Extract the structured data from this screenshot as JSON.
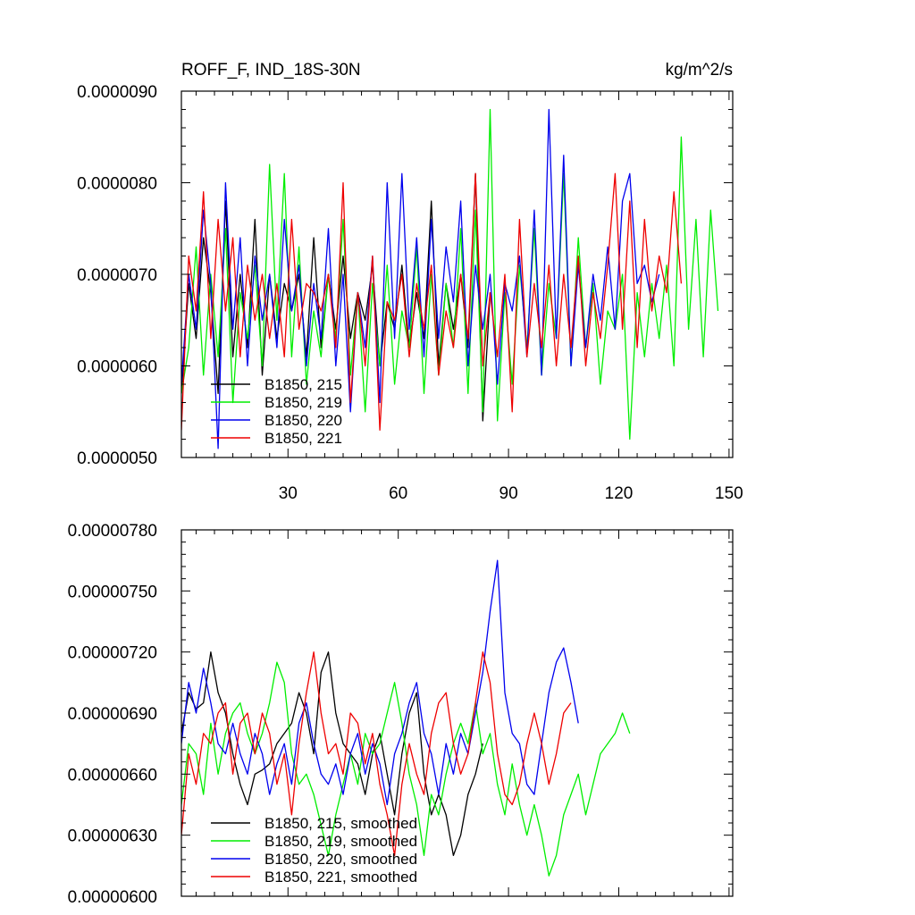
{
  "chart_data": [
    {
      "type": "line",
      "title_left": "ROFF_F, IND_18S-30N",
      "title_right": "kg/m^2/s",
      "xlabel": "",
      "ylabel": "",
      "xlim": [
        1,
        151
      ],
      "ylim": [
        5e-06,
        9e-06
      ],
      "x_ticks": [
        30,
        60,
        90,
        120,
        150
      ],
      "x_tick_labels": [
        "30",
        "60",
        "90",
        "120",
        "150"
      ],
      "y_ticks": [
        5e-06,
        6e-06,
        7e-06,
        8e-06,
        9e-06
      ],
      "y_tick_labels": [
        "0.0000050",
        "0.0000060",
        "0.0000070",
        "0.0000080",
        "0.0000090"
      ],
      "legend_position": "bottom-left",
      "series": [
        {
          "name": "B1850, 215",
          "color": "#000000",
          "x_start": 1,
          "x_step": 2,
          "values": [
            5.7e-06,
            6.9e-06,
            6.3e-06,
            7.4e-06,
            6.8e-06,
            5.7e-06,
            7.8e-06,
            6.1e-06,
            7e-06,
            6.2e-06,
            7.6e-06,
            5.9e-06,
            7e-06,
            6.3e-06,
            6.9e-06,
            6.6e-06,
            7e-06,
            6.1e-06,
            7.4e-06,
            6.2e-06,
            7e-06,
            6.4e-06,
            7.2e-06,
            6.3e-06,
            6.8e-06,
            6.5e-06,
            7.1e-06,
            6e-06,
            6.7e-06,
            6.4e-06,
            7.1e-06,
            6.2e-06,
            6.8e-06,
            6.3e-06,
            7.8e-06,
            6e-06,
            6.9e-06,
            6.4e-06,
            7e-06,
            6.2e-06,
            8.1e-06,
            5.4e-06,
            6.8e-06
          ]
        },
        {
          "name": "B1850, 219",
          "color": "#00ee00",
          "x_start": 1,
          "x_step": 2,
          "values": [
            5.7e-06,
            6.2e-06,
            7.3e-06,
            5.9e-06,
            7e-06,
            6.1e-06,
            7.5e-06,
            5.6e-06,
            6.8e-06,
            6.3e-06,
            7.1e-06,
            6e-06,
            8.2e-06,
            6.5e-06,
            8.1e-06,
            6.1e-06,
            7.3e-06,
            5.8e-06,
            6.6e-06,
            6.1e-06,
            7e-06,
            6.3e-06,
            7.6e-06,
            5.9e-06,
            6.8e-06,
            5.5e-06,
            6.9e-06,
            6e-06,
            7.1e-06,
            5.8e-06,
            6.6e-06,
            6.2e-06,
            7.3e-06,
            5.7e-06,
            7e-06,
            5.9e-06,
            6.9e-06,
            6.2e-06,
            7.5e-06,
            5.7e-06,
            7.7e-06,
            5.5e-06,
            8.8e-06,
            5.4e-06,
            6.8e-06,
            5.8e-06,
            7.1e-06,
            6.2e-06,
            7.5e-06,
            5.9e-06,
            6.9e-06,
            6.3e-06,
            8.1e-06,
            6e-06,
            7.4e-06,
            6.2e-06,
            6.9e-06,
            5.8e-06,
            6.6e-06,
            6.4e-06,
            7e-06,
            5.2e-06,
            6.8e-06,
            6.1e-06,
            6.9e-06,
            6.3e-06,
            7.1e-06,
            6e-06,
            8.5e-06,
            6.4e-06,
            7.6e-06,
            6.1e-06,
            7.7e-06,
            6.6e-06
          ]
        },
        {
          "name": "B1850, 220",
          "color": "#0000ee",
          "x_start": 1,
          "x_step": 2,
          "values": [
            5.8e-06,
            7e-06,
            6.4e-06,
            7.7e-06,
            6.9e-06,
            5.1e-06,
            8e-06,
            6.4e-06,
            7.4e-06,
            6e-06,
            7.2e-06,
            6.5e-06,
            7e-06,
            6.2e-06,
            7.6e-06,
            6.6e-06,
            7.1e-06,
            6e-06,
            6.9e-06,
            6.3e-06,
            7.5e-06,
            6e-06,
            7e-06,
            5.5e-06,
            6.8e-06,
            6.2e-06,
            7.2e-06,
            5.6e-06,
            8e-06,
            6.3e-06,
            8.1e-06,
            6.4e-06,
            7.4e-06,
            6.1e-06,
            7.6e-06,
            6.3e-06,
            7.3e-06,
            6.7e-06,
            7.8e-06,
            6e-06,
            7.1e-06,
            6.4e-06,
            7e-06,
            5.8e-06,
            6.9e-06,
            6.6e-06,
            7.2e-06,
            6.1e-06,
            7.7e-06,
            5.9e-06,
            8.8e-06,
            6.3e-06,
            8.3e-06,
            6e-06,
            7.1e-06,
            6.2e-06,
            7e-06,
            6.5e-06,
            7.3e-06,
            6.4e-06,
            7.8e-06,
            8.1e-06,
            6.9e-06,
            7.1e-06,
            6.7e-06,
            7e-06
          ]
        },
        {
          "name": "B1850, 221",
          "color": "#ee0000",
          "x_start": 1,
          "x_step": 2,
          "values": [
            5.3e-06,
            7.2e-06,
            6.6e-06,
            7.9e-06,
            6.3e-06,
            7.6e-06,
            6.6e-06,
            7.4e-06,
            6.1e-06,
            7.1e-06,
            6.5e-06,
            7e-06,
            6.3e-06,
            6.9e-06,
            6.1e-06,
            7.6e-06,
            6.4e-06,
            6.9e-06,
            6.8e-06,
            6.6e-06,
            7e-06,
            6.2e-06,
            8e-06,
            5.6e-06,
            6.8e-06,
            6e-06,
            7.2e-06,
            5.3e-06,
            6.7e-06,
            6.5e-06,
            7e-06,
            6.1e-06,
            6.9e-06,
            6.4e-06,
            7.1e-06,
            5.9e-06,
            6.6e-06,
            6.2e-06,
            7e-06,
            6.3e-06,
            8.1e-06,
            6e-06,
            6.8e-06,
            6.1e-06,
            7e-06,
            5.5e-06,
            7.6e-06,
            6.1e-06,
            6.9e-06,
            6.2e-06,
            7.1e-06,
            6e-06,
            7e-06,
            6.2e-06,
            7.2e-06,
            6e-06,
            6.8e-06,
            6.3e-06,
            7.1e-06,
            8.1e-06,
            6.4e-06,
            7.8e-06,
            6.2e-06,
            7.6e-06,
            6.6e-06,
            7.2e-06,
            6.8e-06,
            7.9e-06,
            6.9e-06
          ]
        }
      ]
    },
    {
      "type": "line",
      "title_left": "",
      "title_right": "",
      "xlabel": "",
      "ylabel": "",
      "xlim": [
        1,
        151
      ],
      "ylim": [
        6e-06,
        7.8e-06
      ],
      "x_ticks": [
        30,
        60,
        90,
        120,
        150
      ],
      "x_tick_labels": [],
      "y_ticks": [
        6e-06,
        6.3e-06,
        6.6e-06,
        6.9e-06,
        7.2e-06,
        7.5e-06,
        7.8e-06
      ],
      "y_tick_labels": [
        "0.00000600",
        "0.00000630",
        "0.00000660",
        "0.00000690",
        "0.00000720",
        "0.00000750",
        "0.00000780"
      ],
      "legend_position": "bottom-left",
      "series": [
        {
          "name": "B1850, 215, smoothed",
          "color": "#000000",
          "x_start": 1,
          "x_step": 2,
          "values": [
            6.8e-06,
            7e-06,
            6.92e-06,
            6.95e-06,
            7.2e-06,
            7e-06,
            6.9e-06,
            6.7e-06,
            6.55e-06,
            6.45e-06,
            6.6e-06,
            6.62e-06,
            6.65e-06,
            6.75e-06,
            6.8e-06,
            6.85e-06,
            7e-06,
            6.9e-06,
            6.7e-06,
            7.1e-06,
            7.2e-06,
            6.9e-06,
            6.75e-06,
            6.7e-06,
            6.65e-06,
            6.5e-06,
            6.7e-06,
            6.8e-06,
            6.6e-06,
            6.4e-06,
            6.7e-06,
            6.9e-06,
            7e-06,
            6.6e-06,
            6.4e-06,
            6.5e-06,
            6.4e-06,
            6.2e-06,
            6.3e-06,
            6.5e-06,
            6.6e-06,
            6.75e-06
          ]
        },
        {
          "name": "B1850, 219, smoothed",
          "color": "#00ee00",
          "x_start": 1,
          "x_step": 2,
          "values": [
            6.45e-06,
            6.75e-06,
            6.7e-06,
            6.5e-06,
            6.85e-06,
            6.6e-06,
            6.8e-06,
            6.9e-06,
            6.95e-06,
            6.8e-06,
            6.7e-06,
            6.8e-06,
            6.95e-06,
            7.15e-06,
            7.05e-06,
            6.7e-06,
            6.55e-06,
            6.6e-06,
            6.5e-06,
            6.35e-06,
            6.2e-06,
            6.4e-06,
            6.55e-06,
            6.7e-06,
            6.55e-06,
            6.8e-06,
            6.7e-06,
            6.75e-06,
            6.9e-06,
            7.05e-06,
            6.85e-06,
            6.6e-06,
            6.45e-06,
            6.2e-06,
            6.5e-06,
            6.4e-06,
            6.6e-06,
            6.75e-06,
            6.85e-06,
            6.75e-06,
            6.95e-06,
            6.7e-06,
            6.8e-06,
            6.55e-06,
            6.4e-06,
            6.65e-06,
            6.45e-06,
            6.3e-06,
            6.45e-06,
            6.3e-06,
            6.1e-06,
            6.2e-06,
            6.4e-06,
            6.5e-06,
            6.6e-06,
            6.4e-06,
            6.55e-06,
            6.7e-06,
            6.75e-06,
            6.8e-06,
            6.9e-06,
            6.8e-06
          ]
        },
        {
          "name": "B1850, 220, smoothed",
          "color": "#0000ee",
          "x_start": 1,
          "x_step": 2,
          "values": [
            6.75e-06,
            7.05e-06,
            6.9e-06,
            7.12e-06,
            6.95e-06,
            6.75e-06,
            6.7e-06,
            6.85e-06,
            6.7e-06,
            6.6e-06,
            6.8e-06,
            6.7e-06,
            6.5e-06,
            6.65e-06,
            6.75e-06,
            6.55e-06,
            6.85e-06,
            6.95e-06,
            6.75e-06,
            6.6e-06,
            6.55e-06,
            6.65e-06,
            6.5e-06,
            6.7e-06,
            6.8e-06,
            6.6e-06,
            6.75e-06,
            6.65e-06,
            6.45e-06,
            6.7e-06,
            6.8e-06,
            6.95e-06,
            7.05e-06,
            6.8e-06,
            6.7e-06,
            6.5e-06,
            6.75e-06,
            6.6e-06,
            6.8e-06,
            6.7e-06,
            6.9e-06,
            7.1e-06,
            7.4e-06,
            7.65e-06,
            7e-06,
            6.8e-06,
            6.75e-06,
            6.55e-06,
            6.5e-06,
            6.75e-06,
            7e-06,
            7.15e-06,
            7.22e-06,
            7.05e-06,
            6.85e-06
          ]
        },
        {
          "name": "B1850, 221, smoothed",
          "color": "#ee0000",
          "x_start": 1,
          "x_step": 2,
          "values": [
            6.3e-06,
            6.7e-06,
            6.55e-06,
            6.8e-06,
            6.75e-06,
            6.9e-06,
            6.95e-06,
            6.6e-06,
            6.85e-06,
            6.9e-06,
            6.7e-06,
            6.9e-06,
            6.8e-06,
            6.55e-06,
            6.7e-06,
            6.4e-06,
            6.75e-06,
            7e-06,
            7.2e-06,
            6.9e-06,
            6.7e-06,
            6.75e-06,
            6.6e-06,
            6.9e-06,
            6.85e-06,
            6.65e-06,
            6.8e-06,
            6.55e-06,
            6.4e-06,
            6.2e-06,
            6.55e-06,
            6.75e-06,
            6.6e-06,
            6.5e-06,
            6.8e-06,
            6.95e-06,
            7e-06,
            6.75e-06,
            6.6e-06,
            6.7e-06,
            6.95e-06,
            7.2e-06,
            7.05e-06,
            6.7e-06,
            6.5e-06,
            6.45e-06,
            6.55e-06,
            6.75e-06,
            6.9e-06,
            6.75e-06,
            6.55e-06,
            6.7e-06,
            6.9e-06,
            6.95e-06
          ]
        }
      ]
    }
  ]
}
